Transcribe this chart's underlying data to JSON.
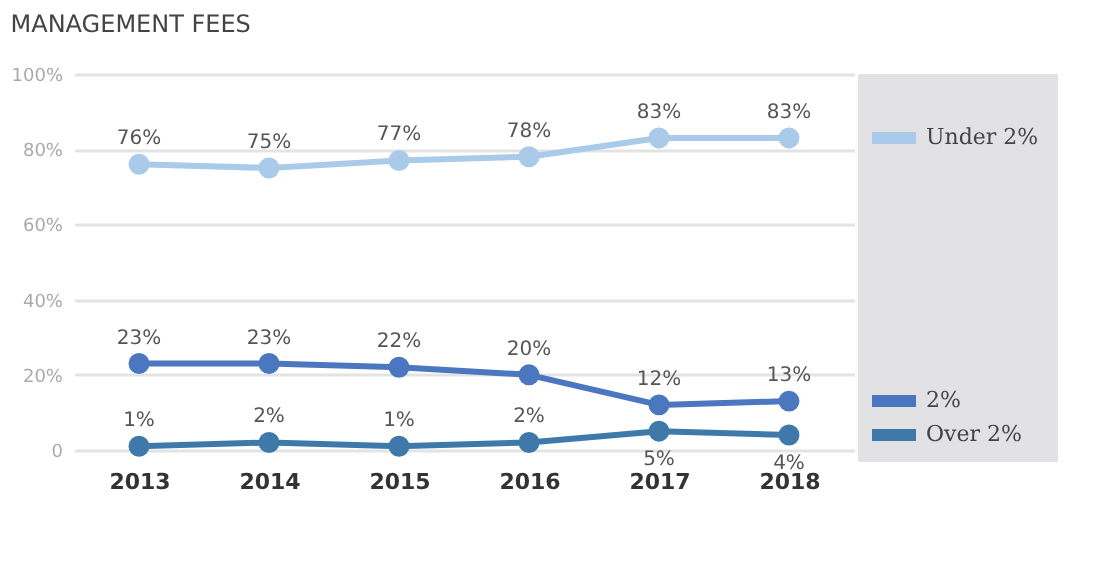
{
  "chart_data": {
    "type": "line",
    "title": "MANAGEMENT FEES",
    "categories": [
      "2013",
      "2014",
      "2015",
      "2016",
      "2017",
      "2018"
    ],
    "series": [
      {
        "name": "Under 2%",
        "color": "#a9cbe9",
        "values": [
          76,
          75,
          77,
          78,
          83,
          83
        ],
        "value_labels": [
          "76%",
          "75%",
          "77%",
          "78%",
          "83%",
          "83%"
        ]
      },
      {
        "name": "2%",
        "color": "#4a77bf",
        "values": [
          23,
          23,
          22,
          20,
          12,
          13
        ],
        "value_labels": [
          "23%",
          "23%",
          "22%",
          "20%",
          "12%",
          "13%"
        ]
      },
      {
        "name": "Over 2%",
        "color": "#3e79aa",
        "values": [
          1,
          2,
          1,
          2,
          5,
          4
        ],
        "value_labels": [
          "1%",
          "2%",
          "1%",
          "2%",
          "5%",
          "4%"
        ]
      }
    ],
    "ylim": [
      0,
      100
    ],
    "yticks": [
      0,
      {
        "value": 20,
        "label": "20%"
      },
      {
        "value": 40,
        "label": "40%"
      },
      {
        "value": 60,
        "label": "60%"
      },
      {
        "value": 80,
        "label": "80%"
      },
      {
        "value": 100,
        "label": "100%"
      }
    ],
    "grid": "y",
    "legend": "right",
    "marker": "circle",
    "line_style": "solid"
  }
}
